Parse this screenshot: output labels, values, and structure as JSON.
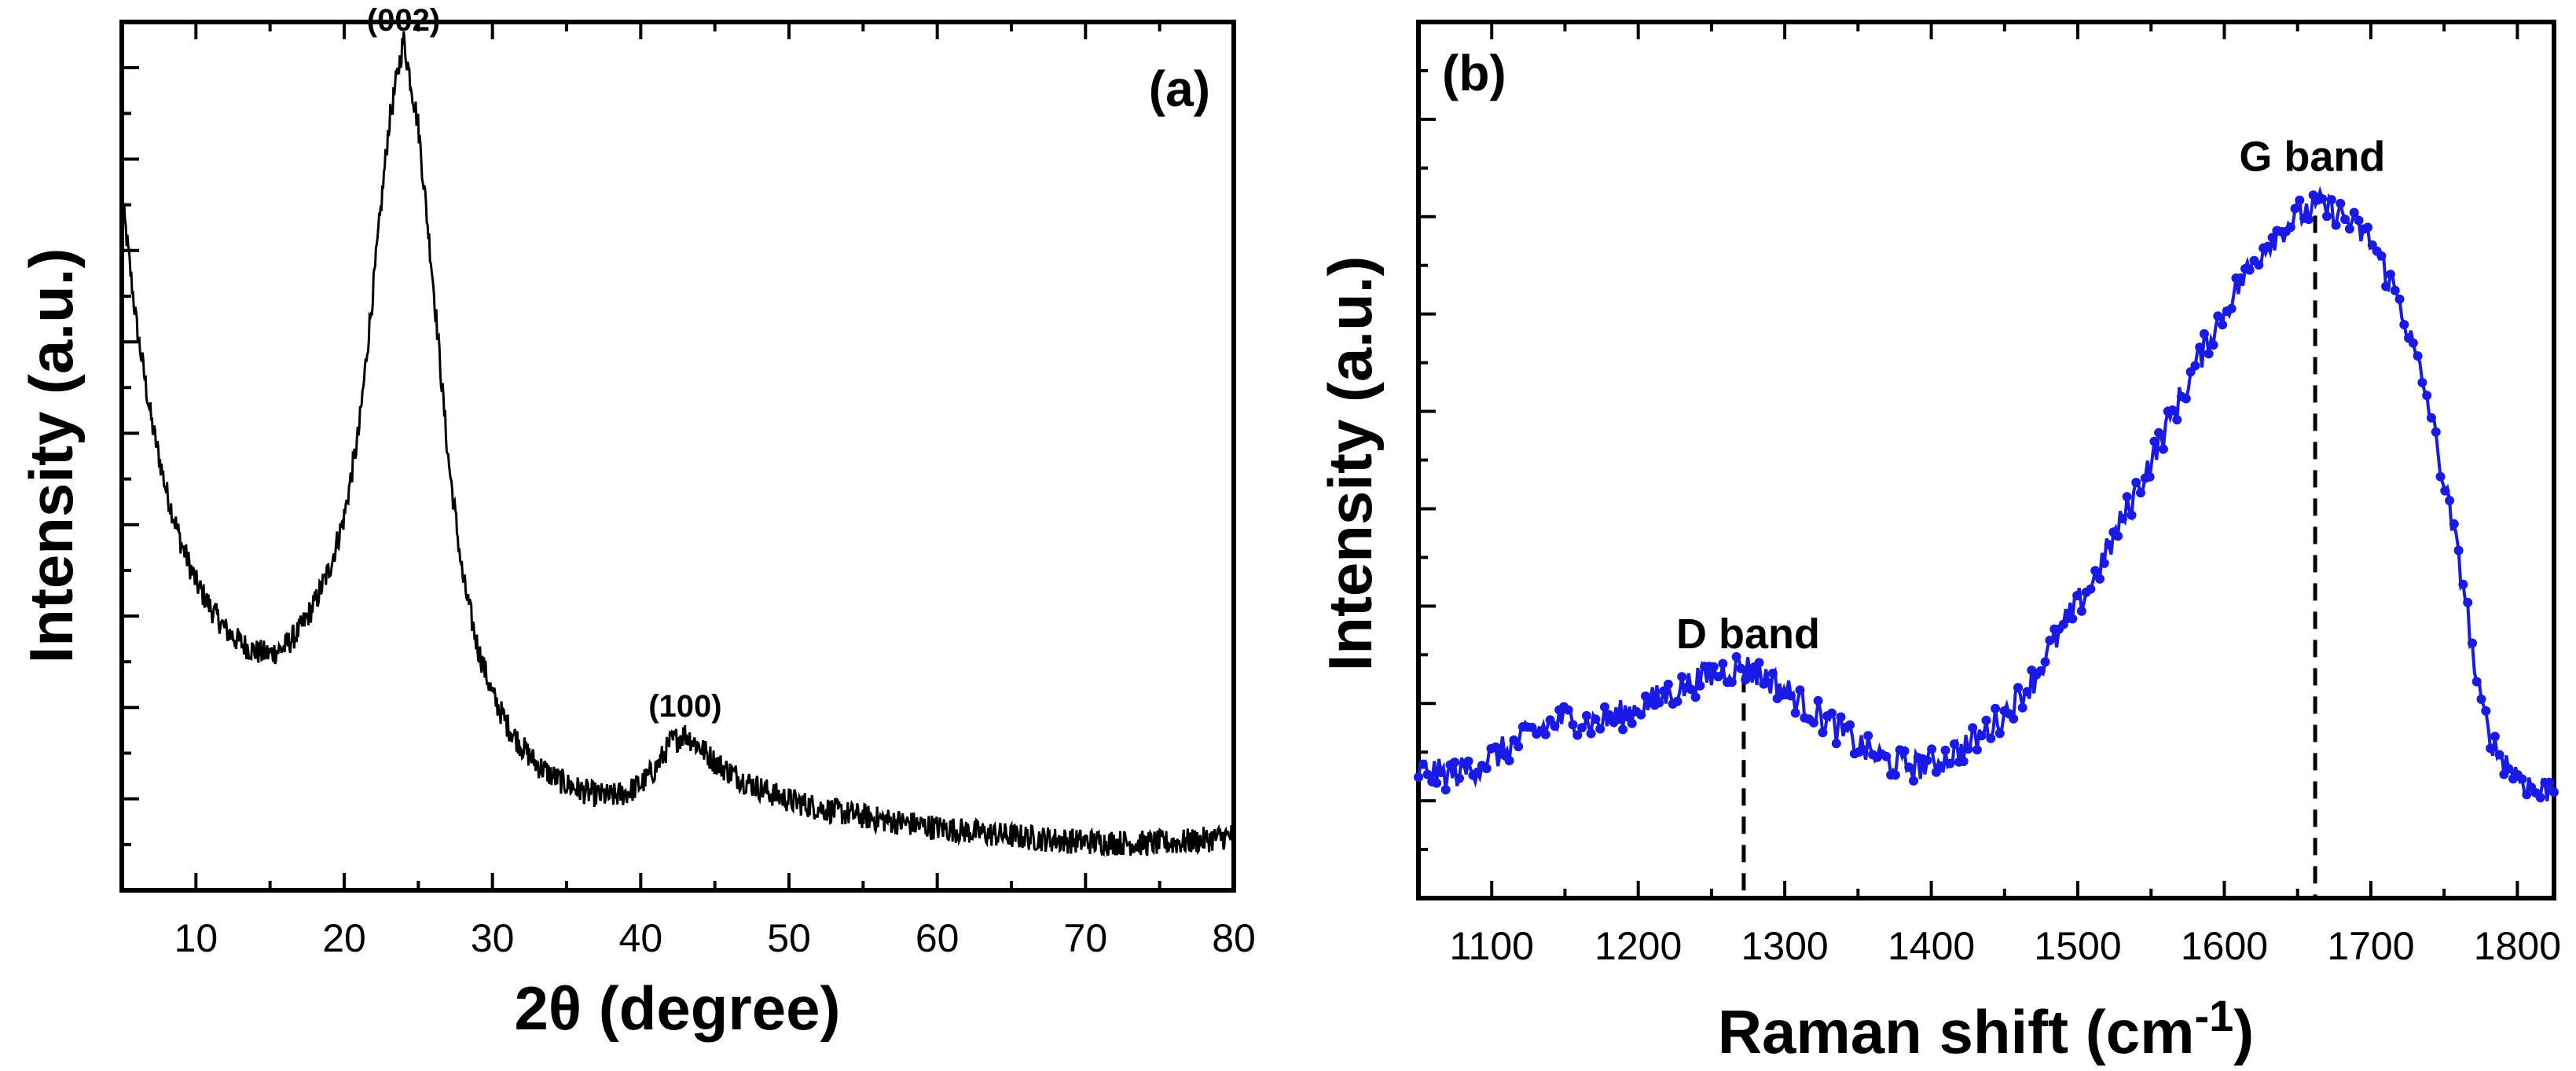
{
  "chart_data": [
    {
      "panel": "(a)",
      "type": "line",
      "xlabel": "2θ (degree)",
      "ylabel": "Intensity (a.u.)",
      "xlim": [
        5,
        80
      ],
      "ylim": [
        0,
        1
      ],
      "xticks": [
        10,
        20,
        30,
        40,
        50,
        60,
        70,
        80
      ],
      "yticks_labeled": false,
      "line_color": "#000000",
      "series": [
        {
          "x": [
            5,
            6,
            7,
            8,
            9,
            10,
            11,
            12,
            13,
            14,
            15,
            16,
            17,
            18,
            19,
            20,
            21,
            22,
            23,
            24,
            25,
            26,
            27,
            28,
            29,
            30,
            31,
            32,
            33,
            34,
            35,
            36,
            37,
            38,
            39,
            40,
            41,
            42,
            43,
            44,
            45,
            46,
            47,
            48,
            49,
            50,
            52,
            54,
            56,
            58,
            60,
            62,
            64,
            66,
            68,
            70,
            72,
            74,
            76,
            78,
            80
          ],
          "y": [
            0.8,
            0.65,
            0.54,
            0.46,
            0.4,
            0.355,
            0.325,
            0.3,
            0.285,
            0.275,
            0.272,
            0.28,
            0.3,
            0.33,
            0.37,
            0.43,
            0.53,
            0.7,
            0.88,
            0.98,
            0.88,
            0.7,
            0.5,
            0.36,
            0.28,
            0.225,
            0.19,
            0.165,
            0.145,
            0.132,
            0.122,
            0.115,
            0.11,
            0.108,
            0.112,
            0.122,
            0.14,
            0.17,
            0.18,
            0.165,
            0.148,
            0.136,
            0.126,
            0.118,
            0.11,
            0.104,
            0.095,
            0.088,
            0.082,
            0.077,
            0.072,
            0.068,
            0.064,
            0.061,
            0.058,
            0.056,
            0.055,
            0.054,
            0.055,
            0.058,
            0.063
          ]
        }
      ],
      "annotations": [
        {
          "text": "(002)",
          "x": 24.0,
          "y": 0.99
        },
        {
          "text": "(100)",
          "x": 43.0,
          "y": 0.2
        }
      ]
    },
    {
      "panel": "(b)",
      "type": "line",
      "xlabel": "Raman shift (cm",
      "xlabel_superscript": "-1",
      "xlabel_suffix": ")",
      "ylabel": "Intensity (a.u.)",
      "xlim": [
        1050,
        1825
      ],
      "ylim": [
        0,
        1
      ],
      "xticks": [
        1100,
        1200,
        1300,
        1400,
        1500,
        1600,
        1700,
        1800
      ],
      "yticks_labeled": false,
      "line_color": "#1a1ae6",
      "marker": "circle",
      "series": [
        {
          "x": [
            1050,
            1070,
            1090,
            1110,
            1130,
            1150,
            1170,
            1190,
            1210,
            1230,
            1250,
            1270,
            1290,
            1310,
            1330,
            1350,
            1370,
            1390,
            1410,
            1430,
            1450,
            1470,
            1490,
            1510,
            1530,
            1550,
            1570,
            1590,
            1610,
            1630,
            1650,
            1665,
            1680,
            1700,
            1720,
            1740,
            1755,
            1765,
            1770,
            1775,
            1785,
            1800,
            1815,
            1825
          ],
          "y": [
            0.145,
            0.14,
            0.15,
            0.17,
            0.19,
            0.205,
            0.2,
            0.21,
            0.225,
            0.24,
            0.255,
            0.265,
            0.25,
            0.225,
            0.2,
            0.175,
            0.155,
            0.15,
            0.16,
            0.18,
            0.21,
            0.25,
            0.31,
            0.36,
            0.43,
            0.5,
            0.57,
            0.64,
            0.7,
            0.75,
            0.78,
            0.79,
            0.78,
            0.75,
            0.68,
            0.56,
            0.43,
            0.34,
            0.27,
            0.22,
            0.17,
            0.14,
            0.12,
            0.13
          ]
        }
      ],
      "annotations": [
        {
          "text": "D band",
          "x": 1275,
          "y": 0.285,
          "marker_x": 1272
        },
        {
          "text": "G band",
          "x": 1660,
          "y": 0.83,
          "marker_x": 1662
        }
      ]
    }
  ]
}
